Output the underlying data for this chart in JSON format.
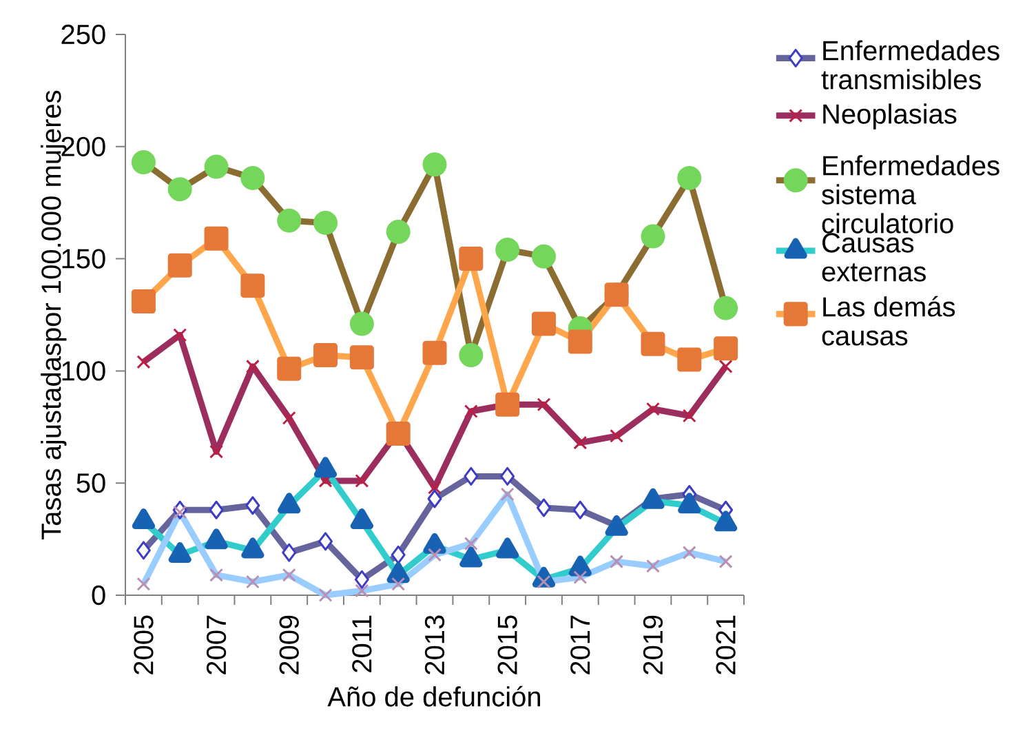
{
  "chart_data": {
    "type": "line",
    "ylabel": "Tasas ajustadaspor 100.000 mujeres",
    "xlabel": "Año de defunción",
    "categories": [
      "2005",
      null,
      "2007",
      null,
      "2009",
      null,
      "2011",
      null,
      "2013",
      null,
      "2015",
      null,
      "2017",
      null,
      "2019",
      null,
      "2021"
    ],
    "ylim": [
      0,
      250
    ],
    "yticks": [
      0,
      50,
      100,
      150,
      200,
      250
    ],
    "legend": "right",
    "grid": false,
    "line_style": "solid",
    "series": [
      {
        "name": "Enfermedades transmisibles",
        "color": "#65649c",
        "marker": "diamond",
        "values": [
          20,
          38,
          38,
          40,
          19,
          24,
          7,
          18,
          43,
          53,
          53,
          39,
          38,
          31,
          43,
          45,
          38
        ]
      },
      {
        "name": "Neoplasias",
        "color": "#9b2d5f",
        "marker": "cross",
        "values": [
          104,
          116,
          64,
          102,
          79,
          51,
          51,
          73,
          48,
          82,
          85,
          85,
          68,
          71,
          83,
          80,
          102
        ]
      },
      {
        "name": "Enfermedades sistema circulatorio",
        "color": "#8c6d31",
        "marker": "circle",
        "values": [
          193,
          181,
          191,
          186,
          167,
          166,
          121,
          162,
          192,
          107,
          154,
          151,
          119,
          134,
          160,
          186,
          128
        ]
      },
      {
        "name": "Causas externas",
        "color": "#33cccc",
        "marker": "triangle",
        "values": [
          33,
          18,
          24,
          20,
          40,
          56,
          33,
          9,
          22,
          16,
          20,
          7,
          12,
          30,
          42,
          40,
          32
        ]
      },
      {
        "name": "Las demás causas",
        "color": "#ffa64d",
        "marker": "square",
        "values": [
          131,
          147,
          159,
          138,
          101,
          107,
          106,
          72,
          108,
          150,
          85,
          121,
          113,
          134,
          112,
          105,
          110
        ]
      },
      {
        "color": "#99ccff",
        "marker": "cross",
        "values": [
          5,
          37,
          9,
          6,
          9,
          0,
          2,
          5,
          18,
          23,
          45,
          6,
          8,
          15,
          13,
          19,
          15
        ]
      }
    ]
  }
}
